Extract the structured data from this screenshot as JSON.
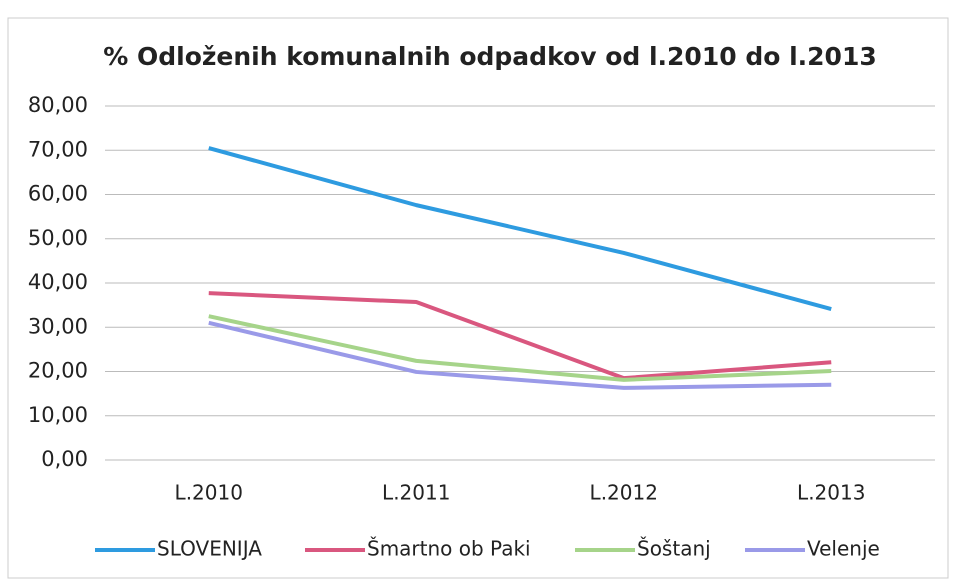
{
  "chart_data": {
    "type": "line",
    "title": "% Odloženih komunalnih odpadkov od l.2010 do l.2013",
    "categories": [
      "L.2010",
      "L.2011",
      "L.2012",
      "L.2013"
    ],
    "series": [
      {
        "name": "SLOVENIJA",
        "color": "#2e9be0",
        "values": [
          70.5,
          57.6,
          46.8,
          34.1
        ]
      },
      {
        "name": "Šmartno ob Paki",
        "color": "#d9577f",
        "values": [
          37.7,
          35.7,
          18.5,
          22.1
        ]
      },
      {
        "name": "Šoštanj",
        "color": "#a6d48a",
        "values": [
          32.5,
          22.4,
          18.1,
          20.1
        ]
      },
      {
        "name": "Velenje",
        "color": "#9a9ae8",
        "values": [
          31.0,
          19.9,
          16.3,
          17.0
        ]
      }
    ],
    "ylim": [
      0,
      80
    ],
    "yticks": [
      {
        "value": 0,
        "label": "0,00"
      },
      {
        "value": 10,
        "label": "10,00"
      },
      {
        "value": 20,
        "label": "20,00"
      },
      {
        "value": 30,
        "label": "30,00"
      },
      {
        "value": 40,
        "label": "40,00"
      },
      {
        "value": 50,
        "label": "50,00"
      },
      {
        "value": 60,
        "label": "60,00"
      },
      {
        "value": 70,
        "label": "70,00"
      },
      {
        "value": 80,
        "label": "80,00"
      }
    ],
    "grid": true,
    "legend": "bottom"
  }
}
